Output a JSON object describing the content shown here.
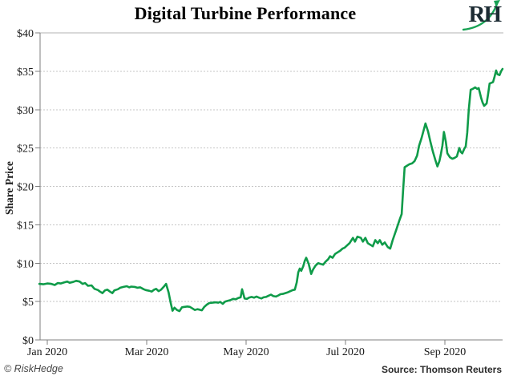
{
  "header": {
    "title": "Digital Turbine Performance",
    "logo_text": "RH"
  },
  "footer": {
    "copyright": "© RiskHedge",
    "source": "Source: Thomson Reuters"
  },
  "colors": {
    "line": "#0f9b49",
    "logo_swoosh": "#18a254",
    "axis": "#7f7f7f",
    "grid": "#c6c6c6",
    "top_rule": "#b3b3b3",
    "tick_text": "#1a1a1a",
    "logo_text": "#1c2b33"
  },
  "chart_data": {
    "type": "line",
    "title": "Digital Turbine Performance",
    "xlabel": "",
    "ylabel": "Share Price",
    "x_unit": "months since Jan 1, 2020",
    "xlim": [
      -0.16,
      9.2
    ],
    "ylim": [
      0,
      40
    ],
    "grid": "horizontal-dotted",
    "legend": "none",
    "y_ticks": [
      {
        "v": 0,
        "label": "$0"
      },
      {
        "v": 5,
        "label": "$5"
      },
      {
        "v": 10,
        "label": "$10"
      },
      {
        "v": 15,
        "label": "$15"
      },
      {
        "v": 20,
        "label": "$20"
      },
      {
        "v": 25,
        "label": "$25"
      },
      {
        "v": 30,
        "label": "$30"
      },
      {
        "v": 35,
        "label": "$35"
      },
      {
        "v": 40,
        "label": "$40"
      }
    ],
    "x_ticks": [
      {
        "v": 0,
        "label": "Jan 2020"
      },
      {
        "v": 2,
        "label": "Mar 2020"
      },
      {
        "v": 4,
        "label": "May 2020"
      },
      {
        "v": 6,
        "label": "Jul 2020"
      },
      {
        "v": 8,
        "label": "Sep 2020"
      }
    ],
    "series": [
      {
        "name": "Digital Turbine share price (USD)",
        "color": "#0f9b49",
        "points": [
          [
            -0.16,
            7.3
          ],
          [
            -0.08,
            7.25
          ],
          [
            0.0,
            7.35
          ],
          [
            0.08,
            7.3
          ],
          [
            0.15,
            7.15
          ],
          [
            0.21,
            7.4
          ],
          [
            0.27,
            7.35
          ],
          [
            0.34,
            7.5
          ],
          [
            0.4,
            7.6
          ],
          [
            0.45,
            7.45
          ],
          [
            0.52,
            7.55
          ],
          [
            0.58,
            7.7
          ],
          [
            0.65,
            7.6
          ],
          [
            0.71,
            7.3
          ],
          [
            0.76,
            7.4
          ],
          [
            0.82,
            7.05
          ],
          [
            0.89,
            7.1
          ],
          [
            0.95,
            6.65
          ],
          [
            1.02,
            6.5
          ],
          [
            1.06,
            6.3
          ],
          [
            1.11,
            6.1
          ],
          [
            1.16,
            6.45
          ],
          [
            1.21,
            6.55
          ],
          [
            1.26,
            6.3
          ],
          [
            1.31,
            6.1
          ],
          [
            1.35,
            6.45
          ],
          [
            1.42,
            6.6
          ],
          [
            1.47,
            6.8
          ],
          [
            1.53,
            6.9
          ],
          [
            1.6,
            7.0
          ],
          [
            1.65,
            6.85
          ],
          [
            1.69,
            6.95
          ],
          [
            1.76,
            6.9
          ],
          [
            1.81,
            6.8
          ],
          [
            1.87,
            6.85
          ],
          [
            1.94,
            6.6
          ],
          [
            1.98,
            6.5
          ],
          [
            2.05,
            6.4
          ],
          [
            2.1,
            6.3
          ],
          [
            2.15,
            6.55
          ],
          [
            2.19,
            6.65
          ],
          [
            2.24,
            6.35
          ],
          [
            2.29,
            6.55
          ],
          [
            2.34,
            6.9
          ],
          [
            2.39,
            7.3
          ],
          [
            2.44,
            6.2
          ],
          [
            2.48,
            4.9
          ],
          [
            2.52,
            3.8
          ],
          [
            2.56,
            4.2
          ],
          [
            2.61,
            3.9
          ],
          [
            2.66,
            3.75
          ],
          [
            2.71,
            4.25
          ],
          [
            2.76,
            4.3
          ],
          [
            2.82,
            4.35
          ],
          [
            2.87,
            4.3
          ],
          [
            2.92,
            4.1
          ],
          [
            2.97,
            3.9
          ],
          [
            3.02,
            4.0
          ],
          [
            3.06,
            3.95
          ],
          [
            3.11,
            3.85
          ],
          [
            3.16,
            4.3
          ],
          [
            3.21,
            4.6
          ],
          [
            3.26,
            4.8
          ],
          [
            3.32,
            4.85
          ],
          [
            3.39,
            4.9
          ],
          [
            3.44,
            4.85
          ],
          [
            3.48,
            4.95
          ],
          [
            3.53,
            4.7
          ],
          [
            3.58,
            5.0
          ],
          [
            3.63,
            5.1
          ],
          [
            3.69,
            5.2
          ],
          [
            3.74,
            5.35
          ],
          [
            3.79,
            5.3
          ],
          [
            3.84,
            5.45
          ],
          [
            3.89,
            5.55
          ],
          [
            3.92,
            6.6
          ],
          [
            3.97,
            5.4
          ],
          [
            4.02,
            5.35
          ],
          [
            4.06,
            5.5
          ],
          [
            4.11,
            5.6
          ],
          [
            4.16,
            5.5
          ],
          [
            4.21,
            5.65
          ],
          [
            4.26,
            5.5
          ],
          [
            4.31,
            5.4
          ],
          [
            4.35,
            5.55
          ],
          [
            4.4,
            5.6
          ],
          [
            4.45,
            5.75
          ],
          [
            4.5,
            5.9
          ],
          [
            4.55,
            5.7
          ],
          [
            4.6,
            5.65
          ],
          [
            4.65,
            5.8
          ],
          [
            4.69,
            5.95
          ],
          [
            4.74,
            6.0
          ],
          [
            4.79,
            6.1
          ],
          [
            4.84,
            6.2
          ],
          [
            4.89,
            6.35
          ],
          [
            4.94,
            6.5
          ],
          [
            4.98,
            6.55
          ],
          [
            5.02,
            7.5
          ],
          [
            5.05,
            8.8
          ],
          [
            5.08,
            9.3
          ],
          [
            5.11,
            9.0
          ],
          [
            5.15,
            9.6
          ],
          [
            5.18,
            10.3
          ],
          [
            5.21,
            10.7
          ],
          [
            5.26,
            9.9
          ],
          [
            5.31,
            8.6
          ],
          [
            5.35,
            9.2
          ],
          [
            5.4,
            9.7
          ],
          [
            5.45,
            10.0
          ],
          [
            5.5,
            9.9
          ],
          [
            5.55,
            9.8
          ],
          [
            5.6,
            10.2
          ],
          [
            5.65,
            10.5
          ],
          [
            5.69,
            10.9
          ],
          [
            5.74,
            10.7
          ],
          [
            5.79,
            11.2
          ],
          [
            5.84,
            11.4
          ],
          [
            5.89,
            11.6
          ],
          [
            5.94,
            11.9
          ],
          [
            5.98,
            12.0
          ],
          [
            6.03,
            12.3
          ],
          [
            6.08,
            12.6
          ],
          [
            6.15,
            13.3
          ],
          [
            6.19,
            12.8
          ],
          [
            6.24,
            13.45
          ],
          [
            6.31,
            13.3
          ],
          [
            6.35,
            12.8
          ],
          [
            6.4,
            13.3
          ],
          [
            6.45,
            12.6
          ],
          [
            6.5,
            12.4
          ],
          [
            6.55,
            12.2
          ],
          [
            6.6,
            13.0
          ],
          [
            6.65,
            12.6
          ],
          [
            6.69,
            13.0
          ],
          [
            6.74,
            12.4
          ],
          [
            6.79,
            12.7
          ],
          [
            6.85,
            12.1
          ],
          [
            6.9,
            11.9
          ],
          [
            6.95,
            13.0
          ],
          [
            7.02,
            14.3
          ],
          [
            7.08,
            15.5
          ],
          [
            7.13,
            16.4
          ],
          [
            7.16,
            19.5
          ],
          [
            7.19,
            22.5
          ],
          [
            7.24,
            22.7
          ],
          [
            7.29,
            22.9
          ],
          [
            7.34,
            23.0
          ],
          [
            7.39,
            23.3
          ],
          [
            7.44,
            24.0
          ],
          [
            7.48,
            25.3
          ],
          [
            7.53,
            26.3
          ],
          [
            7.58,
            27.5
          ],
          [
            7.61,
            28.2
          ],
          [
            7.66,
            27.2
          ],
          [
            7.71,
            25.8
          ],
          [
            7.76,
            24.5
          ],
          [
            7.81,
            23.4
          ],
          [
            7.85,
            22.6
          ],
          [
            7.89,
            23.3
          ],
          [
            7.92,
            24.2
          ],
          [
            7.95,
            25.3
          ],
          [
            7.98,
            27.1
          ],
          [
            8.02,
            25.8
          ],
          [
            8.05,
            24.3
          ],
          [
            8.1,
            23.8
          ],
          [
            8.15,
            23.6
          ],
          [
            8.19,
            23.7
          ],
          [
            8.24,
            23.9
          ],
          [
            8.29,
            25.0
          ],
          [
            8.32,
            24.5
          ],
          [
            8.35,
            24.3
          ],
          [
            8.39,
            24.9
          ],
          [
            8.42,
            25.2
          ],
          [
            8.45,
            27.0
          ],
          [
            8.48,
            30.0
          ],
          [
            8.52,
            32.6
          ],
          [
            8.56,
            32.7
          ],
          [
            8.61,
            32.9
          ],
          [
            8.65,
            32.7
          ],
          [
            8.68,
            32.8
          ],
          [
            8.73,
            31.5
          ],
          [
            8.76,
            30.9
          ],
          [
            8.79,
            30.5
          ],
          [
            8.84,
            30.8
          ],
          [
            8.87,
            32.0
          ],
          [
            8.9,
            33.4
          ],
          [
            8.94,
            33.5
          ],
          [
            8.97,
            33.6
          ],
          [
            9.0,
            34.3
          ],
          [
            9.03,
            35.1
          ],
          [
            9.06,
            34.6
          ],
          [
            9.1,
            34.5
          ],
          [
            9.13,
            35.0
          ],
          [
            9.16,
            35.3
          ]
        ]
      }
    ]
  }
}
